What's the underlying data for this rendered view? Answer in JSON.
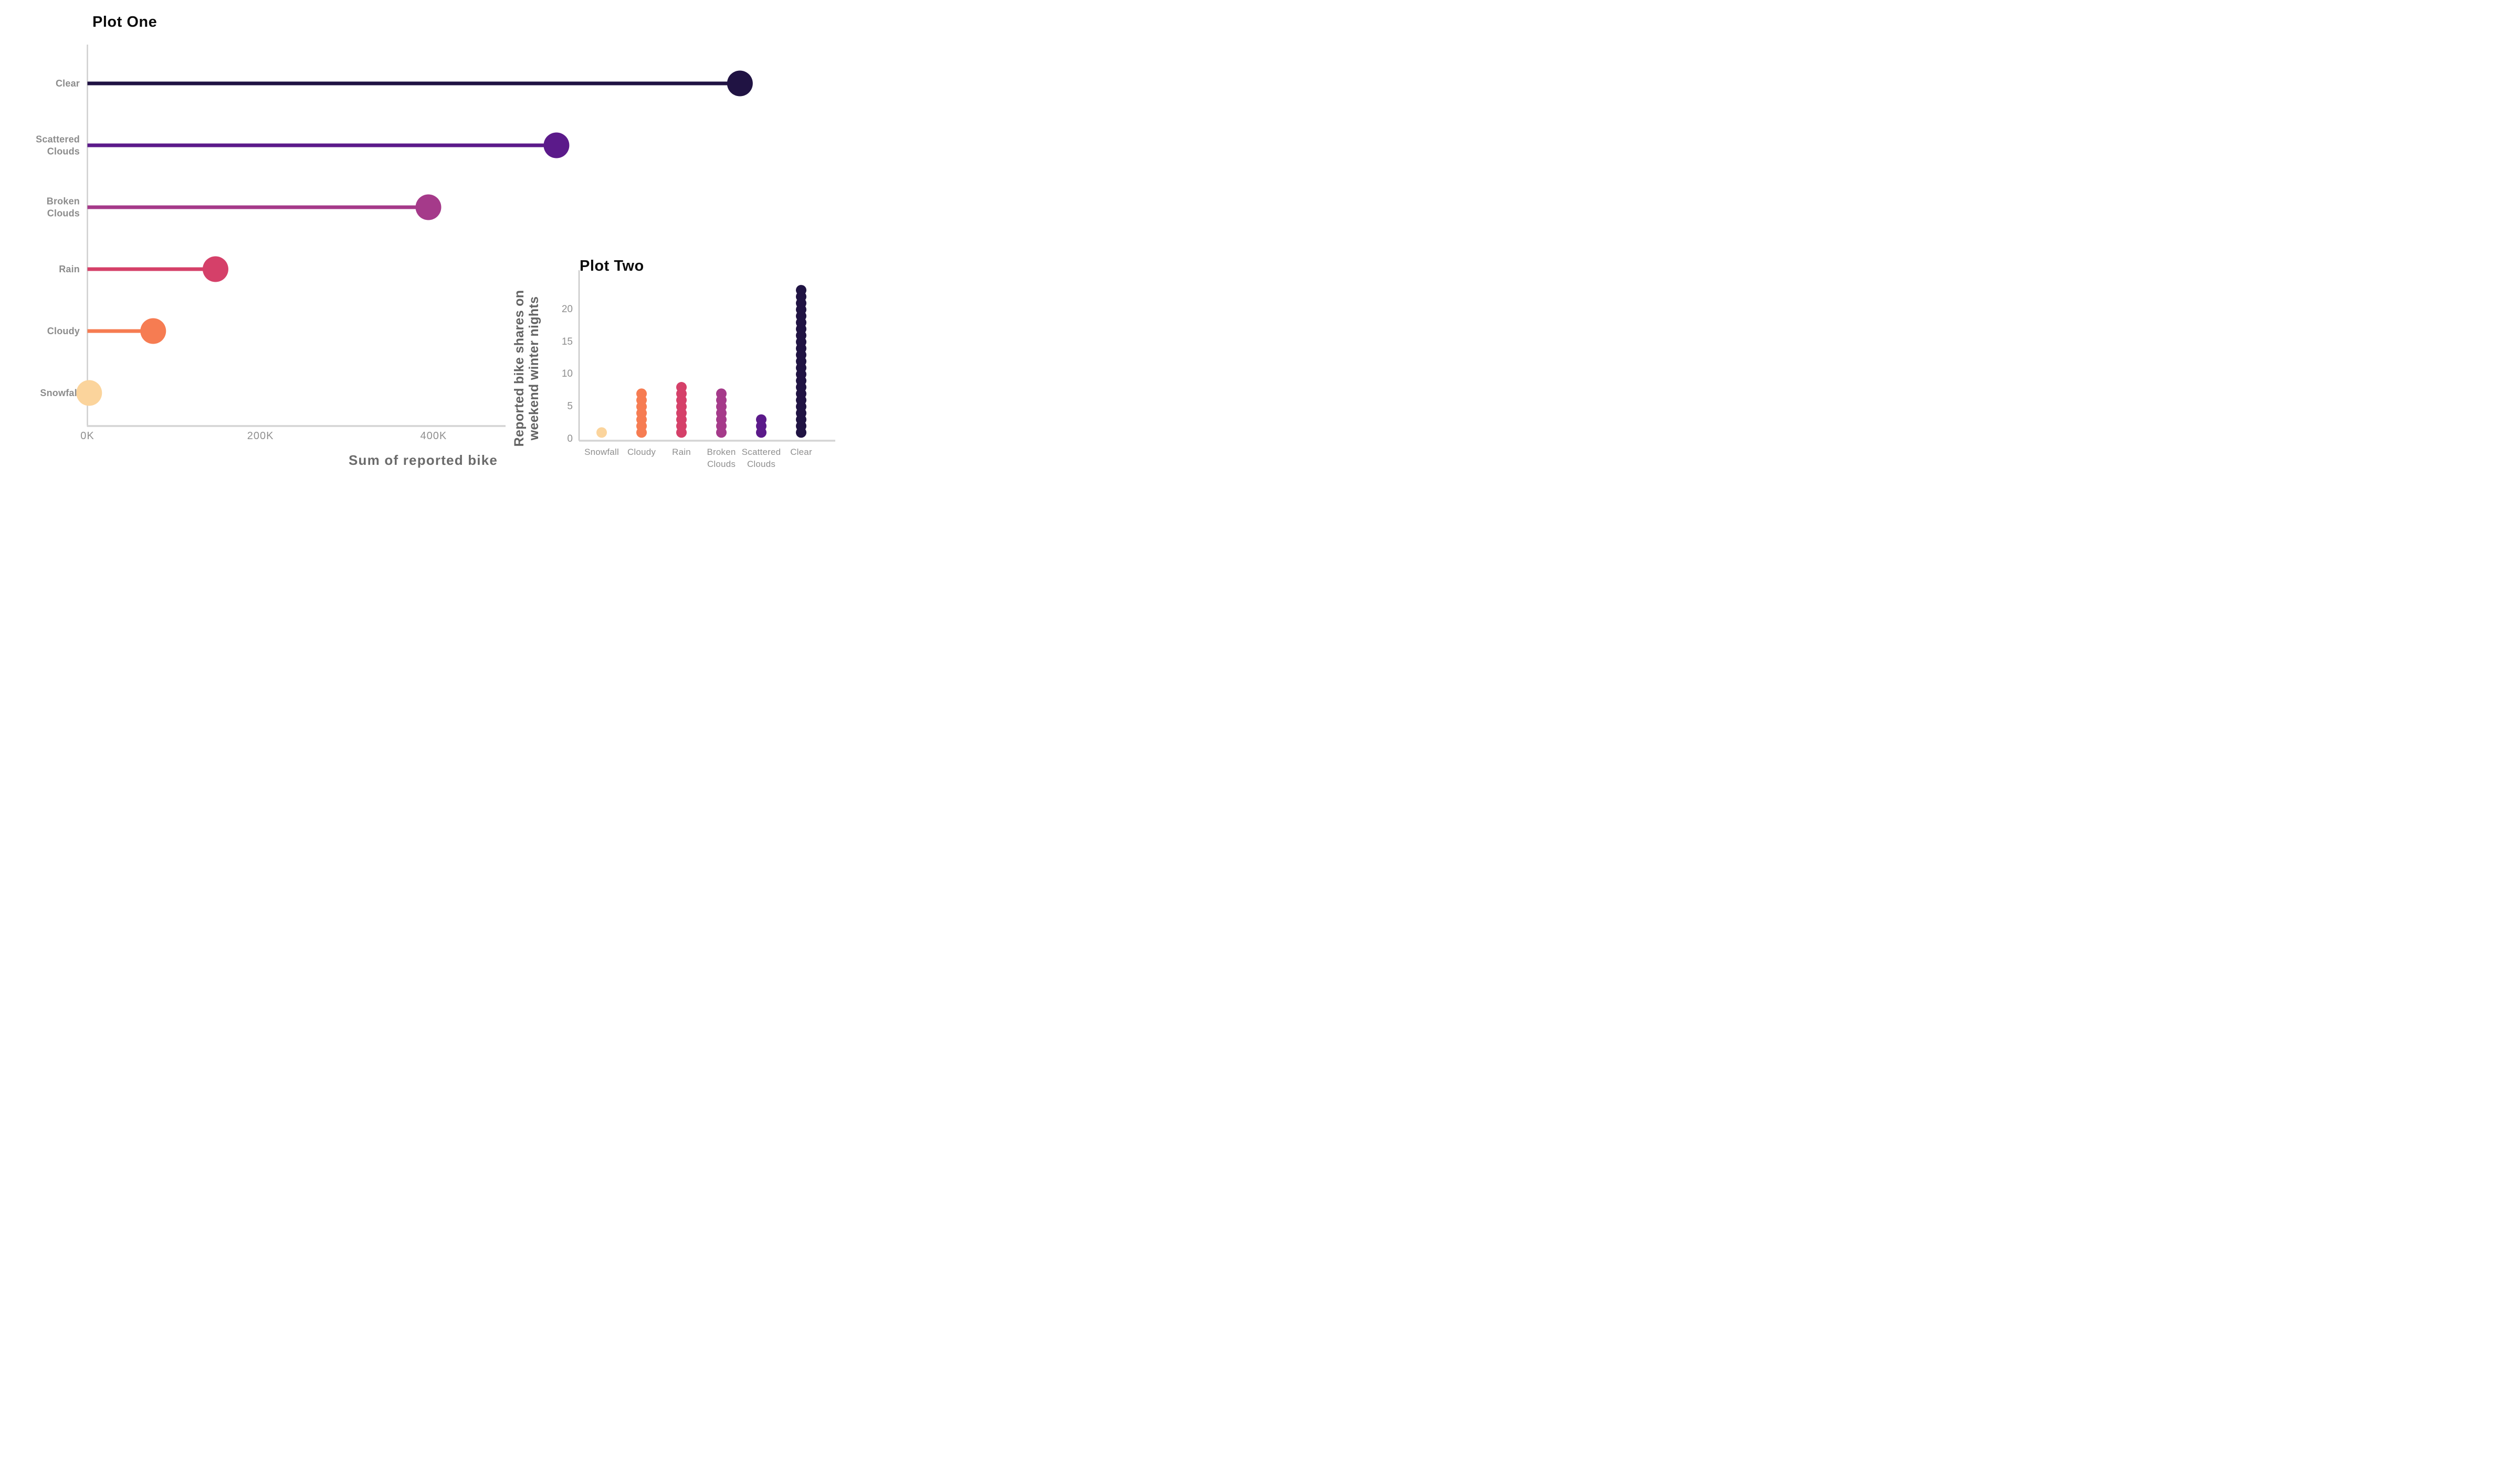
{
  "chart_data": [
    {
      "type": "lollipop",
      "orientation": "horizontal",
      "title": "Plot One",
      "xlabel": "Sum of reported bike",
      "xlabel_note_visible_clipped": "Sum of reported bik",
      "categories": [
        "Clear",
        "Scattered Clouds",
        "Broken Clouds",
        "Rain",
        "Cloudy",
        "Snowfall"
      ],
      "values": [
        754000,
        542000,
        394000,
        148000,
        76000,
        2000
      ],
      "colors": [
        "#201343",
        "#5b1a8a",
        "#a53a8a",
        "#d54069",
        "#f67c52",
        "#fbd49c"
      ],
      "x_ticks": [
        "0K",
        "200K",
        "400K"
      ],
      "x_tick_values": [
        0,
        200000,
        400000
      ],
      "xlim": [
        0,
        840000
      ],
      "grid": false,
      "legend": "none",
      "label_color": "#8c8c8c",
      "axis_color": "#cfcfcf"
    },
    {
      "type": "dot-strip",
      "title": "Plot Two",
      "ylabel": "Reported bike shares on weekend winter nights",
      "ylabel_lines": [
        "Reported bike shares on",
        "weekend winter nights"
      ],
      "categories": [
        "Snowfall",
        "Cloudy",
        "Rain",
        "Broken Clouds",
        "Scattered Clouds",
        "Clear"
      ],
      "values": [
        1,
        7,
        8,
        7,
        3,
        23
      ],
      "dot_rule": "one dot per unit stacked at integer heights 1..N",
      "colors": [
        "#fbd49c",
        "#f67c52",
        "#d54069",
        "#a53a8a",
        "#5b1a8a",
        "#201343"
      ],
      "y_ticks": [
        "0",
        "5",
        "10",
        "15",
        "20"
      ],
      "y_tick_values": [
        0,
        5,
        10,
        15,
        20
      ],
      "ylim": [
        0,
        26
      ],
      "grid": false,
      "legend": "none",
      "label_color": "#8f8f8f",
      "axis_color": "#c9c9c9"
    }
  ]
}
